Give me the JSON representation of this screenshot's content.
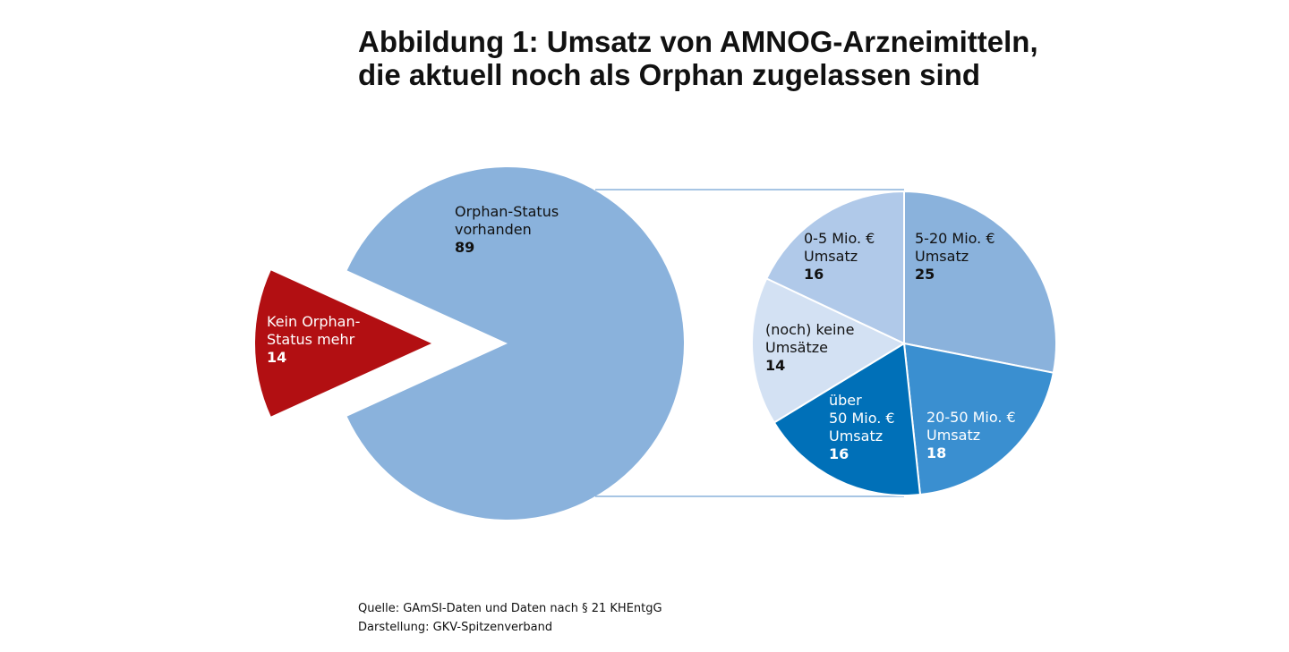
{
  "title": "Abbildung 1: Umsatz von AMNOG-Arzneimitteln,\ndie aktuell noch als Orphan zugelassen sind",
  "source": "Quelle: GAmSI-Daten und Daten nach § 21 KHEntgG",
  "credit": "Darstellung: GKV-Spitzenverband",
  "chart_data": [
    {
      "type": "pie",
      "categories": [
        "Orphan-Status\nvorhanden",
        "Kein Orphan-\nStatus mehr"
      ],
      "values": [
        89,
        14
      ],
      "colors": [
        "#8ab2dc",
        "#b20f12"
      ]
    },
    {
      "type": "pie",
      "categories": [
        "5-20 Mio. €\nUmsatz",
        "20-50 Mio. €\nUmsatz",
        "über\n50 Mio. €\nUmsatz",
        "(noch) keine\nUmsätze",
        "0-5 Mio. €\nUmsatz"
      ],
      "values": [
        25,
        18,
        16,
        14,
        16
      ],
      "colors": [
        "#8ab2dc",
        "#3a8fd0",
        "#0070b8",
        "#d3e1f3",
        "#b0c9e9"
      ]
    }
  ]
}
